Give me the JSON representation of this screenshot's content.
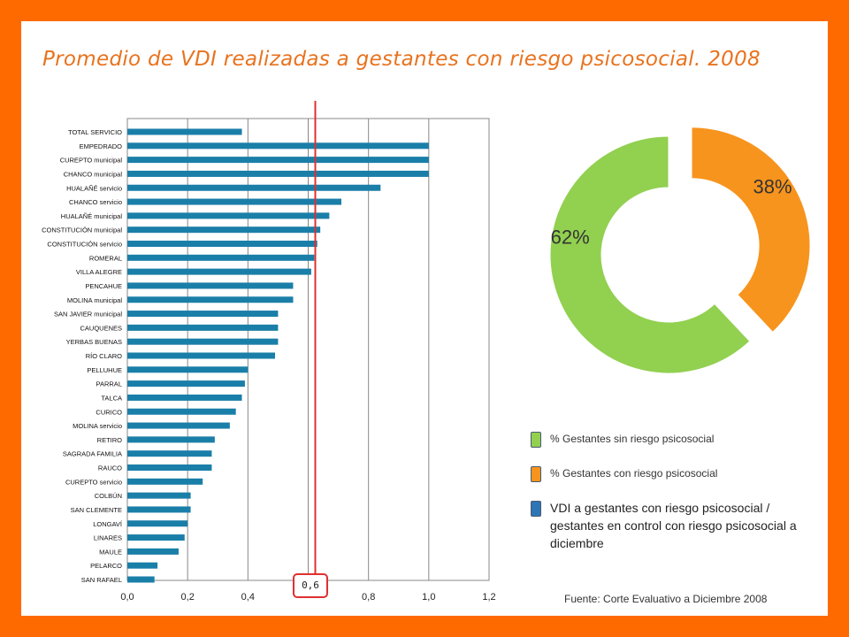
{
  "title": "Promedio de VDI realizadas a gestantes con riesgo psicosocial. 2008",
  "source": "Fuente: Corte Evaluativo  a Diciembre 2008",
  "reference_line": {
    "value": 0.6,
    "label": "0,6",
    "color": "#e03030"
  },
  "colors": {
    "bar": "#1a7fa8",
    "green": "#92d050",
    "orange": "#f7941d",
    "blue": "#2e75b6",
    "frame": "#ff6a00",
    "title": "#e8731f"
  },
  "legend": [
    {
      "label": "% Gestantes sin riesgo psicosocial",
      "color": "#92d050",
      "icon": "green-square-icon"
    },
    {
      "label": "% Gestantes con riesgo psicosocial",
      "color": "#f7941d",
      "icon": "orange-square-icon"
    },
    {
      "label": "VDI a gestantes con riesgo psicosocial / gestantes  en control con riesgo psicosocial a diciembre",
      "color": "#2e75b6",
      "icon": "blue-square-icon"
    }
  ],
  "chart_data": [
    {
      "type": "bar",
      "orientation": "horizontal",
      "categories": [
        "TOTAL SERVICIO",
        "EMPEDRADO",
        "CUREPTO municipal",
        "CHANCO municipal",
        "HUALAÑÉ servicio",
        "CHANCO servicio",
        "HUALAÑÉ municipal",
        "CONSTITUCIÓN municipal",
        "CONSTITUCIÓN servicio",
        "ROMERAL",
        "VILLA ALEGRE",
        "PENCAHUE",
        "MOLINA municipal",
        "SAN JAVIER municipal",
        "CAUQUENES",
        "YERBAS BUENAS",
        "RÍO CLARO",
        "PELLUHUE",
        "PARRAL",
        "TALCA",
        "CURICO",
        "MOLINA servicio",
        "RETIRO",
        "SAGRADA FAMILIA",
        "RAUCO",
        "CUREPTO servicio",
        "COLBÚN",
        "SAN CLEMENTE",
        "LONGAVÍ",
        "LINARES",
        "MAULE",
        "PELARCO",
        "SAN RAFAEL"
      ],
      "values": [
        0.38,
        1.0,
        1.0,
        1.0,
        0.84,
        0.71,
        0.67,
        0.64,
        0.63,
        0.62,
        0.61,
        0.55,
        0.55,
        0.5,
        0.5,
        0.5,
        0.49,
        0.4,
        0.39,
        0.38,
        0.36,
        0.34,
        0.29,
        0.28,
        0.28,
        0.25,
        0.21,
        0.21,
        0.2,
        0.19,
        0.17,
        0.1,
        0.09
      ],
      "xlim": [
        0,
        1.2
      ],
      "xticks": [
        "0,0",
        "0,2",
        "0,4",
        "0,6",
        "0,8",
        "1,0",
        "1,2"
      ],
      "grid": true
    },
    {
      "type": "pie",
      "style": "donut",
      "labels": [
        "% Gestantes sin riesgo psicosocial",
        "% Gestantes con riesgo psicosocial"
      ],
      "values": [
        62,
        38
      ],
      "value_labels": [
        "62%",
        "38%"
      ]
    }
  ]
}
